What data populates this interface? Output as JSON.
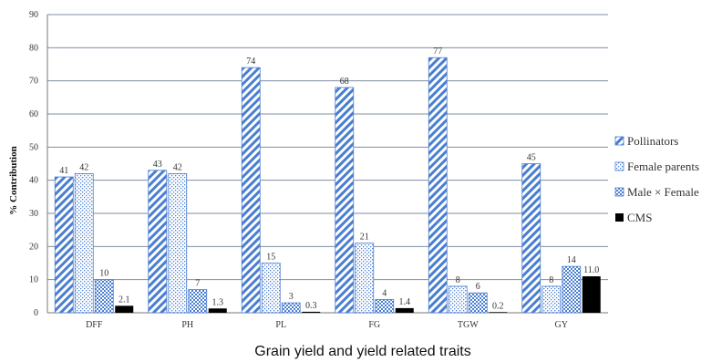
{
  "chart_data": {
    "type": "bar",
    "categories": [
      "DFF",
      "PH",
      "PL",
      "FG",
      "TGW",
      "GY"
    ],
    "series": [
      {
        "name": "Pollinators",
        "values": [
          41,
          43,
          74,
          68,
          77,
          45
        ],
        "labels": [
          "41",
          "43",
          "74",
          "68",
          "77",
          "45"
        ],
        "pattern": "diagonal"
      },
      {
        "name": "Female parents",
        "values": [
          42,
          42,
          15,
          21,
          8,
          8
        ],
        "labels": [
          "42",
          "42",
          "15",
          "21",
          "8",
          "8"
        ],
        "pattern": "dots"
      },
      {
        "name": "Male × Female",
        "values": [
          10,
          7,
          3,
          4,
          6,
          14
        ],
        "labels": [
          "10",
          "7",
          "3",
          "4",
          "6",
          "14"
        ],
        "pattern": "checker"
      },
      {
        "name": "CMS",
        "values": [
          2.1,
          1.3,
          0.3,
          1.4,
          0.2,
          11.0
        ],
        "labels": [
          "2.1",
          "1.3",
          "0.3",
          "1.4",
          "0.2",
          "11.0"
        ],
        "pattern": "solid"
      }
    ],
    "title": "",
    "xlabel": "Grain yield and yield related traits",
    "ylabel": "% Contribution",
    "ylim": [
      0,
      90
    ],
    "yticks": [
      0,
      10,
      20,
      30,
      40,
      50,
      60,
      70,
      80,
      90
    ],
    "grid": true,
    "legend_position": "right",
    "colors": {
      "bar_pattern": "#4a7ed0",
      "cms": "#000000",
      "grid": "#7f8ea3",
      "axis": "#777777"
    }
  }
}
